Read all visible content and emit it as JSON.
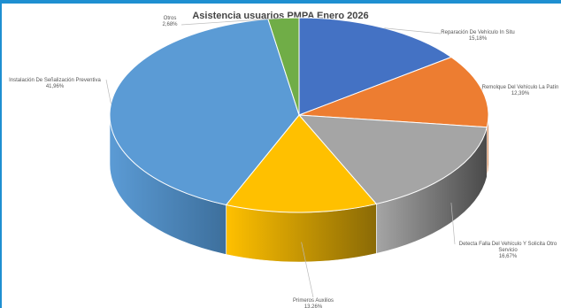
{
  "chart_data": {
    "type": "pie",
    "title": "Asistencia usuarios PMPA Enero 2026",
    "slices": [
      {
        "name": "Reparación De Vehículo In Situ",
        "value": 15.18,
        "label": "15,18%",
        "color": "#4472c4",
        "side": "#2c4d8a"
      },
      {
        "name": "Remolque Del Vehículo La Patín",
        "value": 12.39,
        "label": "12,39%",
        "color": "#ed7d31",
        "side": "#a5531c"
      },
      {
        "name": "Detecta Falla Del Vehículo Y Solicita Otro Servicio",
        "value": 16.67,
        "label": "16,67%",
        "color": "#a5a5a5",
        "side": "#4a4a4a"
      },
      {
        "name": "Primeros Auxilios",
        "value": 13.26,
        "label": "13,26%",
        "color": "#ffc000",
        "side": "#8a6a06"
      },
      {
        "name": "Instalación De Señalización Preventiva",
        "value": 41.96,
        "label": "41,96%",
        "color": "#5b9bd5",
        "side": "#3d6f9c"
      },
      {
        "name": "Otros",
        "value": 2.68,
        "label": "2,68%",
        "color": "#70ad47",
        "side": "#4a7a2c"
      }
    ]
  }
}
